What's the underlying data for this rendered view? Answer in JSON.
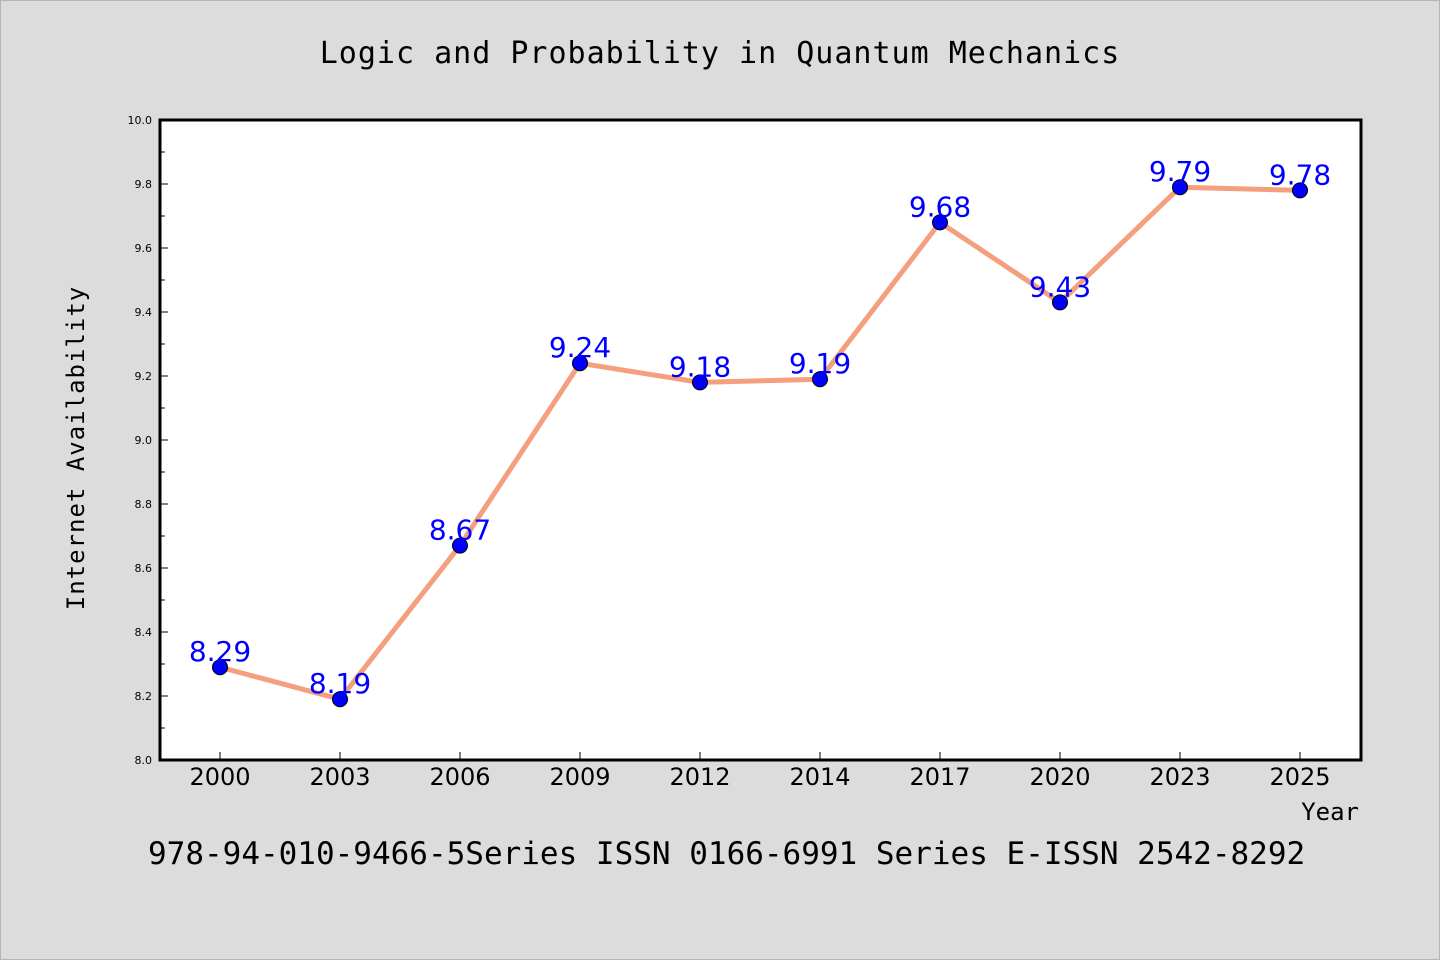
{
  "chart_data": {
    "type": "line",
    "title": "Logic and Probability in Quantum Mechanics",
    "xlabel": "Year",
    "ylabel": "Internet Availability",
    "categories": [
      "2000",
      "2003",
      "2006",
      "2009",
      "2012",
      "2014",
      "2017",
      "2020",
      "2023",
      "2025"
    ],
    "series": [
      {
        "values": [
          8.29,
          8.19,
          8.67,
          9.24,
          9.18,
          9.19,
          9.68,
          9.43,
          9.79,
          9.78
        ]
      }
    ],
    "data_labels": [
      "8.29",
      "8.19",
      "8.67",
      "9.24",
      "9.18",
      "9.19",
      "9.68",
      "9.43",
      "9.79",
      "9.78"
    ],
    "ylim": [
      8.0,
      10.0
    ],
    "yticks": [
      "8.0",
      "8.2",
      "8.4",
      "8.6",
      "8.8",
      "9.0",
      "9.2",
      "9.4",
      "9.6",
      "9.8",
      "10.0"
    ],
    "grid": false,
    "legend": "none",
    "colors": {
      "line": "#f4a07e",
      "marker": "#0000ff",
      "data_label": "#0000ff",
      "background": "#dcdcdc",
      "plot_background": "#ffffff"
    }
  },
  "footer": {
    "text": "978-94-010-9466-5Series ISSN 0166-6991 Series E-ISSN 2542-8292"
  }
}
